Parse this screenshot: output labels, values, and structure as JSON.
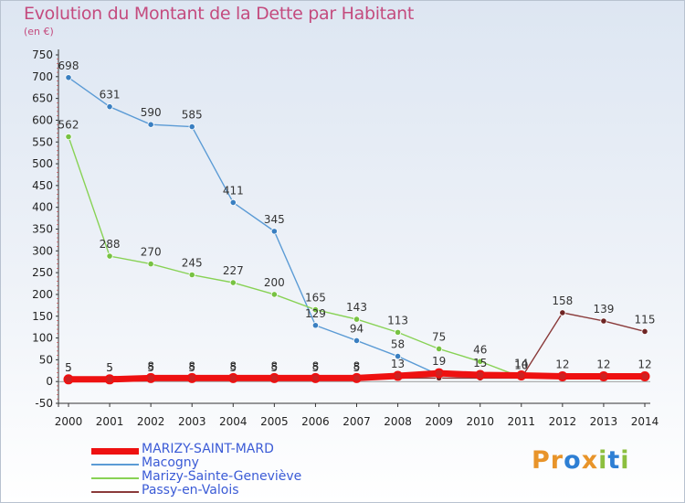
{
  "header": {
    "title": "Evolution du Montant de la Dette par Habitant",
    "subtitle": "(en €)"
  },
  "logo": {
    "text": "Proxiti",
    "letters": [
      {
        "ch": "P",
        "color": "#e8942a"
      },
      {
        "ch": "r",
        "color": "#e8942a"
      },
      {
        "ch": "o",
        "color": "#2e7fd4"
      },
      {
        "ch": "x",
        "color": "#e8942a"
      },
      {
        "ch": "i",
        "color": "#8cbf3f"
      },
      {
        "ch": "t",
        "color": "#2e7fd4"
      },
      {
        "ch": "i",
        "color": "#8cbf3f"
      }
    ]
  },
  "chart_data": {
    "type": "line",
    "title": "Evolution du Montant de la Dette par Habitant",
    "subtitle": "(en €)",
    "x": [
      "2000",
      "2001",
      "2002",
      "2003",
      "2004",
      "2005",
      "2006",
      "2007",
      "2008",
      "2009",
      "2010",
      "2011",
      "2012",
      "2013",
      "2014"
    ],
    "ylim": [
      -50,
      750
    ],
    "yticks": [
      -50,
      0,
      50,
      100,
      150,
      200,
      250,
      300,
      350,
      400,
      450,
      500,
      550,
      600,
      650,
      700,
      750
    ],
    "grid": false,
    "legend_position": "bottom-left",
    "series": [
      {
        "name": "MARIZY-SAINT-MARD",
        "color": "#ee1111",
        "marker_color": "#cc2222",
        "values": [
          5,
          5,
          8,
          8,
          8,
          8,
          8,
          8,
          13,
          19,
          15,
          14,
          12,
          12,
          12
        ],
        "labels": [
          "5",
          "5",
          "8",
          "8",
          "8",
          "8",
          "8",
          "8",
          "13",
          "19",
          "15",
          "14",
          "12",
          "12",
          "12"
        ]
      },
      {
        "name": "Macogny",
        "color": "#5b9bd5",
        "marker_color": "#3a7fc1",
        "values": [
          698,
          631,
          590,
          585,
          411,
          345,
          129,
          94,
          58,
          15,
          12,
          10,
          14,
          14,
          10
        ],
        "labels": [
          "698",
          "631",
          "590",
          "585",
          "411",
          "345",
          "129",
          "94",
          "58",
          "",
          "",
          "10",
          "",
          "",
          ""
        ]
      },
      {
        "name": "Marizy-Sainte-Geneviève",
        "color": "#88d255",
        "marker_color": "#77c242",
        "values": [
          562,
          288,
          270,
          245,
          227,
          200,
          165,
          143,
          113,
          75,
          46,
          10,
          13,
          13,
          13
        ],
        "labels": [
          "562",
          "288",
          "270",
          "245",
          "227",
          "200",
          "165",
          "143",
          "113",
          "75",
          "46",
          "",
          "",
          "",
          ""
        ]
      },
      {
        "name": "Passy-en-Valois",
        "color": "#8a3a3a",
        "marker_color": "#6e2424",
        "values": [
          5,
          5,
          5,
          5,
          5,
          5,
          5,
          5,
          8,
          8,
          8,
          8,
          158,
          139,
          115
        ],
        "labels": [
          "5",
          "5",
          "5",
          "5",
          "5",
          "5",
          "5",
          "5",
          "",
          "",
          "",
          "",
          "158",
          "139",
          "115"
        ]
      }
    ]
  }
}
